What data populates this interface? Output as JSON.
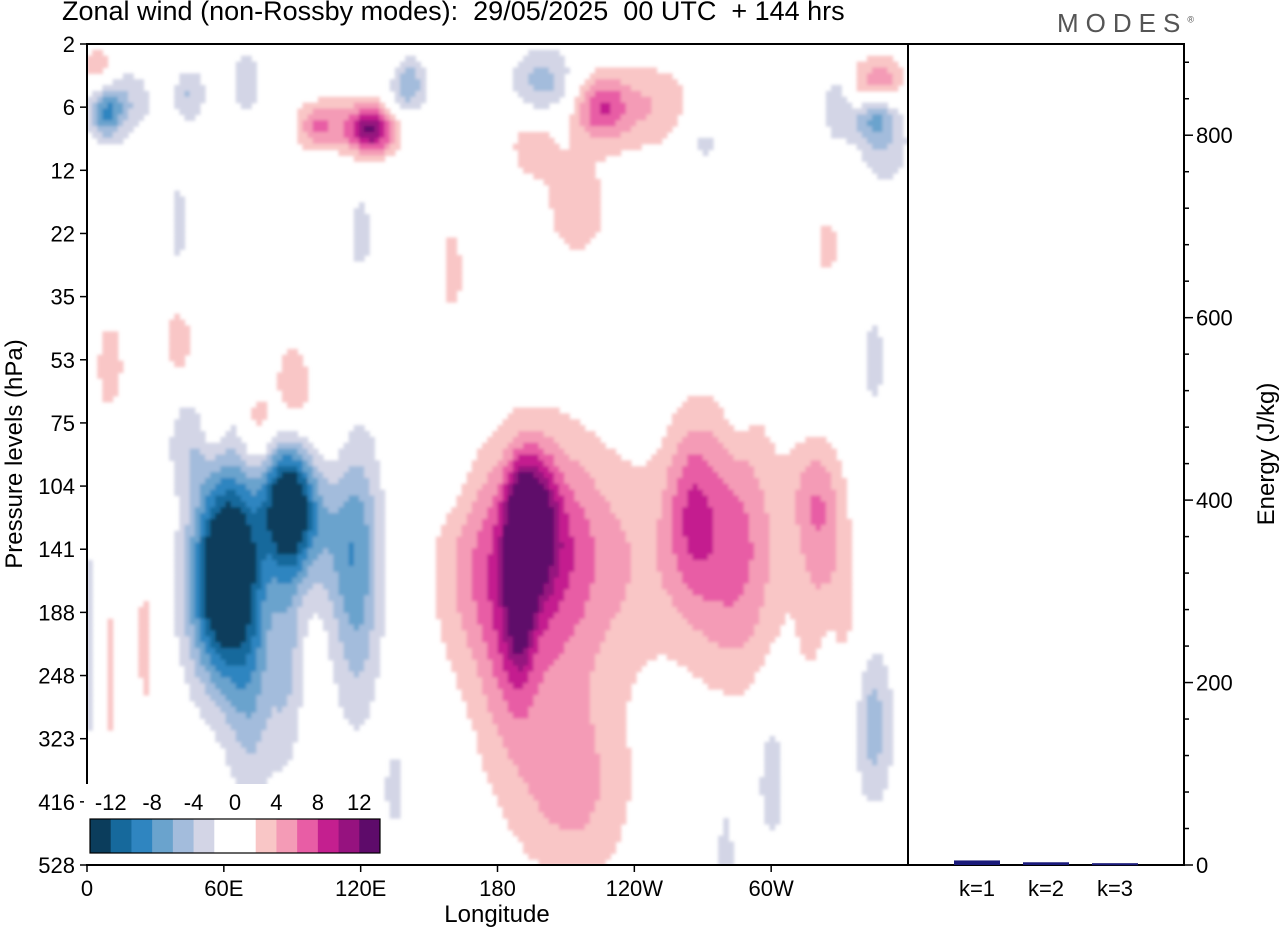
{
  "title": "Zonal wind (non-Rossby modes):  29/05/2025  00 UTC  + 144 hrs",
  "brand": "MODES",
  "brand_mark": "®",
  "chart_data": [
    {
      "type": "heatmap",
      "variable": "Zonal wind (non-Rossby modes)",
      "xlabel": "Longitude",
      "ylabel": "Pressure levels (hPa)",
      "x_ticks": [
        "0",
        "60E",
        "120E",
        "180",
        "120W",
        "60W"
      ],
      "x_tick_values_deg": [
        0,
        60,
        120,
        180,
        240,
        300
      ],
      "xlim_deg": [
        0,
        360
      ],
      "y_ticks": [
        "2",
        "6",
        "12",
        "22",
        "35",
        "53",
        "75",
        "104",
        "141",
        "188",
        "248",
        "323",
        "416",
        "528"
      ],
      "y_scale": "model levels, pressure increasing downward",
      "levels": [
        -12,
        -10,
        -8,
        -6,
        -4,
        -2,
        0,
        2,
        4,
        6,
        8,
        10,
        12
      ],
      "colorbar_labels": [
        "-12",
        "-8",
        "-4",
        "0",
        "4",
        "8",
        "12"
      ],
      "colorbar_colors": [
        "#0b3d5c",
        "#16699c",
        "#2f85c0",
        "#6aa3cd",
        "#a3bcdc",
        "#d3d5e6",
        "#ffffff",
        "#ffffff",
        "#f9c6c6",
        "#f49bb6",
        "#e85da5",
        "#c41f8f",
        "#96127f",
        "#5e0b6a"
      ],
      "colorbar_position": "bottom-left",
      "features": [
        {
          "kind": "negative core",
          "lon": 63,
          "level": "141",
          "min": -12
        },
        {
          "kind": "negative core",
          "lon": 88,
          "level": "120",
          "min": -12
        },
        {
          "kind": "negative region",
          "lon": 118,
          "level": "141",
          "min": -6
        },
        {
          "kind": "positive core",
          "lon": 195,
          "level": "130",
          "max": 10
        },
        {
          "kind": "positive core",
          "lon": 190,
          "level": "160",
          "max": 10
        },
        {
          "kind": "positive region",
          "lon": 285,
          "level": "141",
          "max": 6
        },
        {
          "kind": "positive region",
          "lon": 235,
          "level": "6",
          "max": 6
        },
        {
          "kind": "negative region",
          "lon": 140,
          "level": "4",
          "min": -6
        }
      ]
    },
    {
      "type": "bar",
      "categories": [
        "k=1",
        "k=2",
        "k=3"
      ],
      "values": [
        5,
        3,
        2
      ],
      "ylabel": "Energy (J/kg)",
      "ylim": [
        0,
        900
      ],
      "y_ticks": [
        0,
        200,
        400,
        600,
        800
      ],
      "bar_color": "#1a1a7a"
    }
  ]
}
